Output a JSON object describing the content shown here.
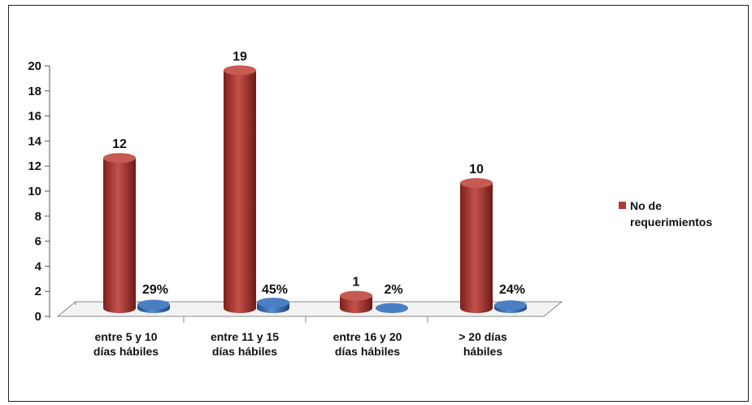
{
  "chart_data": {
    "type": "bar",
    "categories": [
      [
        "entre 5 y 10",
        "días hábiles"
      ],
      [
        "entre 11 y 15",
        "días hábiles"
      ],
      [
        "entre 16 y 20",
        "días  hábiles"
      ],
      [
        "> 20 días",
        "hábiles"
      ]
    ],
    "series": [
      {
        "name": "No de requerimientos",
        "values": [
          12,
          19,
          1,
          10
        ],
        "labels": [
          "12",
          "19",
          "1",
          "10"
        ],
        "color": "#b03a34"
      },
      {
        "values": [
          0.29,
          0.45,
          0.02,
          0.24
        ],
        "labels": [
          "29%",
          "45%",
          "2%",
          "24%"
        ],
        "color": "#3a6fb5"
      }
    ],
    "yticks": [
      "0",
      "2",
      "4",
      "6",
      "8",
      "10",
      "12",
      "14",
      "16",
      "18",
      "20"
    ],
    "ylim": [
      0,
      20
    ],
    "legend": {
      "position": "right",
      "lines": [
        "No de",
        "requerimientos"
      ]
    },
    "title": "",
    "xlabel": "",
    "ylabel": ""
  }
}
